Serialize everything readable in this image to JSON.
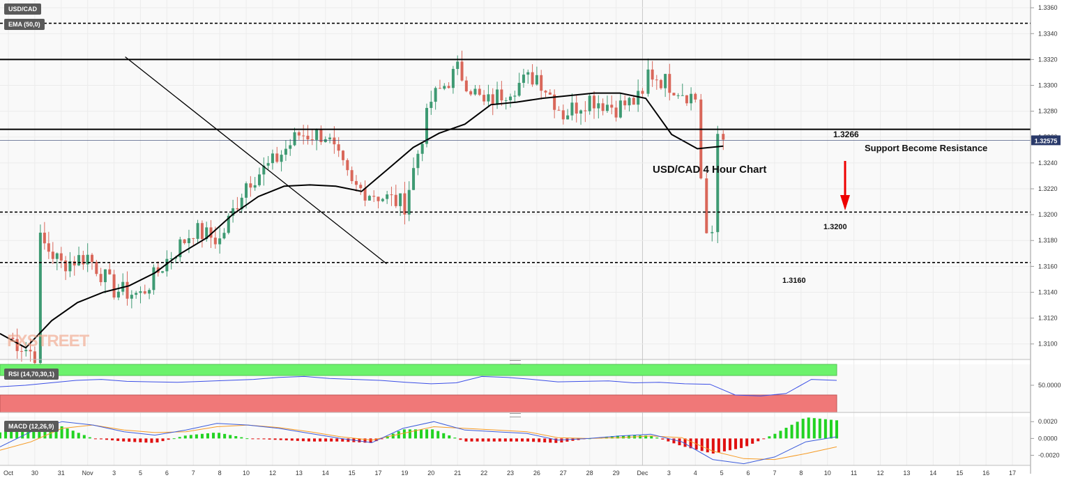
{
  "toolbar": {
    "symbol": "USD/CAD",
    "ema_label": "EMA (50,0)",
    "rsi_label": "RSI (14,70,30,1)",
    "macd_label": "MACD (12,26,9)",
    "watermark": "FXSTREET"
  },
  "annotations": {
    "chart_title": "USD/CAD  4 Hour Chart",
    "resistance_note": "Support Become Resistance",
    "level_1266": "1.3266",
    "level_1200": "1.3200",
    "level_1160": "1.3160",
    "current_price": "1.32575"
  },
  "colors": {
    "bull": "#26a69a",
    "bull_body": "#3e9a73",
    "bear": "#ef5350",
    "bear_body": "#d9675a",
    "ema": "#000000",
    "price_tag": "#2a3a6a",
    "rsi_line": "#3b4ee6",
    "rsi_over": "#6cf26c",
    "rsi_under": "#f07878",
    "macd_line": "#3b5bdb",
    "signal_line": "#f59a23",
    "arrow": "#ee0000"
  },
  "chart_data": {
    "type": "candlestick",
    "x_labels": [
      "Oct",
      "30",
      "31",
      "Nov",
      "3",
      "5",
      "6",
      "7",
      "8",
      "10",
      "12",
      "13",
      "14",
      "15",
      "17",
      "19",
      "20",
      "21",
      "22",
      "23",
      "26",
      "27",
      "28",
      "29",
      "Dec",
      "3",
      "4",
      "5",
      "6",
      "7",
      "8",
      "10",
      "11",
      "12",
      "13",
      "14",
      "15",
      "16",
      "17"
    ],
    "price_axis": {
      "ylim": [
        1.3088,
        1.3366
      ],
      "ticks": [
        1.31,
        1.312,
        1.314,
        1.316,
        1.318,
        1.32,
        1.322,
        1.324,
        1.326,
        1.328,
        1.33,
        1.332,
        1.334,
        1.336
      ],
      "tick_labels": [
        "1.3100",
        "1.3120",
        "1.3140",
        "1.3160",
        "1.3180",
        "1.3200",
        "1.3220",
        "1.3240",
        "1.3260",
        "1.3280",
        "1.3300",
        "1.3320",
        "1.3340",
        "1.3360"
      ]
    },
    "ohlc_anchors": [
      {
        "x": "Oct",
        "close": 1.3105
      },
      {
        "x": "30",
        "close": 1.3092
      },
      {
        "x": "30",
        "close": 1.318
      },
      {
        "x": "31",
        "close": 1.3162
      },
      {
        "x": "Nov",
        "close": 1.3168
      },
      {
        "x": "3",
        "close": 1.3142
      },
      {
        "x": "5",
        "close": 1.3138
      },
      {
        "x": "6",
        "close": 1.3165
      },
      {
        "x": "7",
        "close": 1.3188
      },
      {
        "x": "8",
        "close": 1.318
      },
      {
        "x": "10",
        "close": 1.3225
      },
      {
        "x": "12",
        "close": 1.324
      },
      {
        "x": "13",
        "close": 1.3262
      },
      {
        "x": "14",
        "close": 1.3262
      },
      {
        "x": "15",
        "close": 1.3222
      },
      {
        "x": "17",
        "close": 1.3215
      },
      {
        "x": "19",
        "close": 1.3208
      },
      {
        "x": "20",
        "close": 1.3288
      },
      {
        "x": "21",
        "close": 1.3312
      },
      {
        "x": "22",
        "close": 1.3285
      },
      {
        "x": "23",
        "close": 1.3298
      },
      {
        "x": "26",
        "close": 1.3308
      },
      {
        "x": "27",
        "close": 1.3278
      },
      {
        "x": "28",
        "close": 1.329
      },
      {
        "x": "29",
        "close": 1.3283
      },
      {
        "x": "Dec",
        "close": 1.329
      },
      {
        "x": "3",
        "close": 1.331
      },
      {
        "x": "4",
        "close": 1.329
      },
      {
        "x": "4",
        "close": 1.323
      },
      {
        "x": "5",
        "close": 1.3185
      },
      {
        "x": "6",
        "close": 1.318
      },
      {
        "x": "7",
        "close": 1.3262
      },
      {
        "x": "8",
        "close": 1.3258
      }
    ],
    "ema_50": [
      1.3108,
      1.3097,
      1.3118,
      1.3132,
      1.314,
      1.3145,
      1.3155,
      1.317,
      1.3182,
      1.32,
      1.3214,
      1.3222,
      1.3223,
      1.3222,
      1.3218,
      1.3235,
      1.3252,
      1.3263,
      1.327,
      1.3285,
      1.3287,
      1.329,
      1.3292,
      1.3294,
      1.3294,
      1.329,
      1.3262,
      1.3251,
      1.3253
    ],
    "levels": [
      {
        "value": 1.3348,
        "style": "dotted"
      },
      {
        "value": 1.332,
        "style": "solid"
      },
      {
        "value": 1.3266,
        "style": "solid",
        "label": "1.3266"
      },
      {
        "value": 1.3202,
        "style": "dotted",
        "label": "1.3200"
      },
      {
        "value": 1.3163,
        "style": "dotted",
        "label": "1.3160"
      }
    ],
    "trendline": {
      "start_x": "3",
      "start_price": 1.3322,
      "end_x": "17",
      "end_price": 1.3162
    },
    "rsi": {
      "ticks": [
        "50.0000"
      ],
      "overbought": 70,
      "oversold": 30,
      "values": [
        47,
        50,
        55,
        60,
        62,
        58,
        57,
        56,
        58,
        60,
        62,
        66,
        68,
        64,
        62,
        60,
        56,
        53,
        55,
        68,
        66,
        62,
        57,
        58,
        59,
        55,
        56,
        53,
        52,
        30,
        28,
        33,
        62,
        60
      ]
    },
    "macd": {
      "ticks": [
        "0.0020",
        "0.0000",
        "-0.0020"
      ],
      "ylim": [
        -0.0032,
        0.0026
      ],
      "macd": [
        -0.001,
        0.0008,
        0.002,
        0.0016,
        0.0008,
        0.0004,
        0.001,
        0.0018,
        0.0016,
        0.0012,
        0.0006,
        0.0,
        -0.0005,
        0.0012,
        0.002,
        0.001,
        0.0008,
        0.0006,
        -0.0002,
        0.0,
        0.0003,
        0.0005,
        -0.0004,
        -0.0025,
        -0.003,
        -0.0022,
        -0.0004,
        0.0002
      ],
      "signal": [
        -0.0014,
        -0.0004,
        0.0012,
        0.0016,
        0.001,
        0.0007,
        0.0008,
        0.0014,
        0.0016,
        0.0013,
        0.0008,
        0.0002,
        -0.0002,
        0.0006,
        0.0014,
        0.0012,
        0.001,
        0.0008,
        0.0001,
        0.0,
        0.0001,
        0.0003,
        0.0001,
        -0.0015,
        -0.0024,
        -0.0025,
        -0.0018,
        -0.001
      ]
    }
  }
}
